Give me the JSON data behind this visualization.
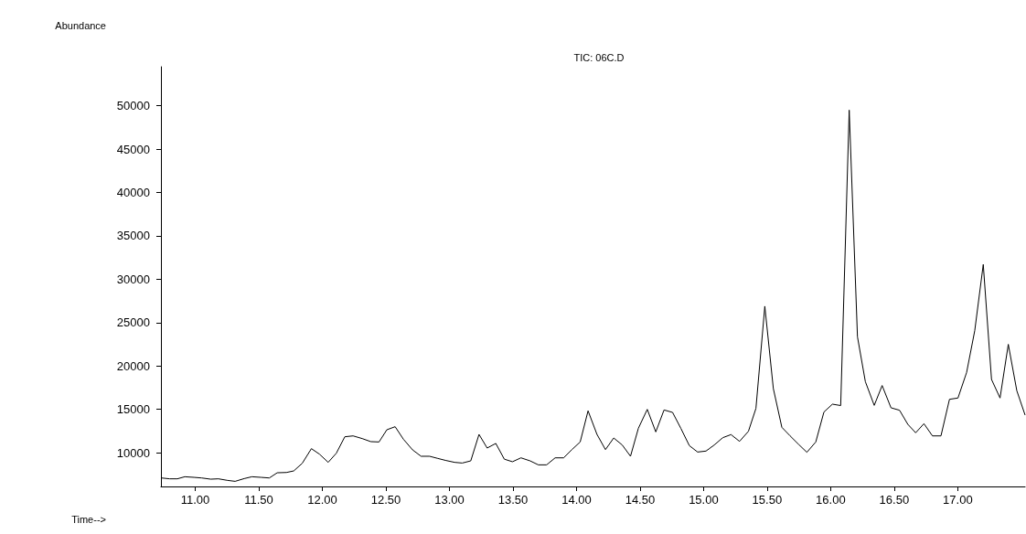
{
  "chart_data": {
    "type": "line",
    "title": "TIC: 06C.D",
    "xlabel": "Time-->",
    "ylabel": "Abundance",
    "x": [
      10.734,
      10.799,
      10.859,
      10.918,
      10.99,
      11.05,
      11.122,
      11.182,
      11.254,
      11.314,
      11.386,
      11.446,
      11.518,
      11.583,
      11.645,
      11.717,
      11.775,
      11.842,
      11.914,
      11.978,
      12.046,
      12.11,
      12.177,
      12.242,
      12.314,
      12.381,
      12.446,
      12.508,
      12.573,
      12.638,
      12.71,
      12.777,
      12.844,
      12.909,
      12.974,
      13.041,
      13.101,
      13.168,
      13.233,
      13.297,
      13.365,
      13.432,
      13.496,
      13.563,
      13.635,
      13.7,
      13.765,
      13.832,
      13.899,
      13.964,
      14.029,
      14.091,
      14.161,
      14.228,
      14.293,
      14.36,
      14.425,
      14.487,
      14.557,
      14.624,
      14.689,
      14.756,
      14.821,
      14.888,
      14.953,
      15.019,
      15.084,
      15.151,
      15.216,
      15.283,
      15.353,
      15.412,
      15.482,
      15.549,
      15.616,
      15.681,
      15.748,
      15.813,
      15.883,
      15.947,
      16.014,
      16.079,
      16.146,
      16.211,
      16.273,
      16.343,
      16.405,
      16.475,
      16.542,
      16.607,
      16.669,
      16.734,
      16.801,
      16.868,
      16.935,
      17.002,
      17.07,
      17.134,
      17.201,
      17.266,
      17.333,
      17.398,
      17.465,
      17.53
    ],
    "series": [
      {
        "color": "#000000",
        "values": [
          7080,
          6980,
          6980,
          7220,
          7150,
          7080,
          6940,
          6980,
          6800,
          6690,
          7010,
          7220,
          7150,
          7080,
          7680,
          7710,
          7890,
          8770,
          10460,
          9820,
          8880,
          9930,
          11830,
          11930,
          11620,
          11270,
          11230,
          12640,
          12990,
          11550,
          10320,
          9580,
          9580,
          9330,
          9090,
          8880,
          8800,
          9050,
          12100,
          10530,
          11060,
          9250,
          8950,
          9400,
          9050,
          8590,
          8590,
          9400,
          9400,
          10350,
          11230,
          14820,
          12110,
          10350,
          11690,
          10880,
          9580,
          12810,
          14990,
          12390,
          14920,
          14640,
          12810,
          10810,
          10070,
          10180,
          10880,
          11720,
          12080,
          11300,
          12460,
          15100,
          26880,
          17390,
          12920,
          11930,
          10950,
          10040,
          11230,
          14680,
          15590,
          15430,
          49500,
          23360,
          18190,
          15450,
          17740,
          15170,
          14890,
          13270,
          12290,
          13340,
          11930,
          11930,
          16150,
          16300,
          19250,
          24070,
          31700,
          18440,
          16300,
          22490,
          17140,
          14330
        ]
      }
    ],
    "xlim": [
      10.73,
      17.53
    ],
    "xticks": [
      {
        "value": 11,
        "label": "11.00"
      },
      {
        "value": 11.5,
        "label": "11.50"
      },
      {
        "value": 12,
        "label": "12.00"
      },
      {
        "value": 12.5,
        "label": "12.50"
      },
      {
        "value": 13,
        "label": "13.00"
      },
      {
        "value": 13.5,
        "label": "13.50"
      },
      {
        "value": 14,
        "label": "14.00"
      },
      {
        "value": 14.5,
        "label": "14.50"
      },
      {
        "value": 15,
        "label": "15.00"
      },
      {
        "value": 15.5,
        "label": "15.50"
      },
      {
        "value": 16,
        "label": "16.00"
      },
      {
        "value": 16.5,
        "label": "16.50"
      },
      {
        "value": 17,
        "label": "17.00"
      }
    ],
    "ylim": [
      6100,
      54500
    ],
    "yticks": [
      10000,
      15000,
      20000,
      25000,
      30000,
      35000,
      40000,
      45000,
      50000
    ],
    "marker": "none",
    "line_style": "solid"
  }
}
